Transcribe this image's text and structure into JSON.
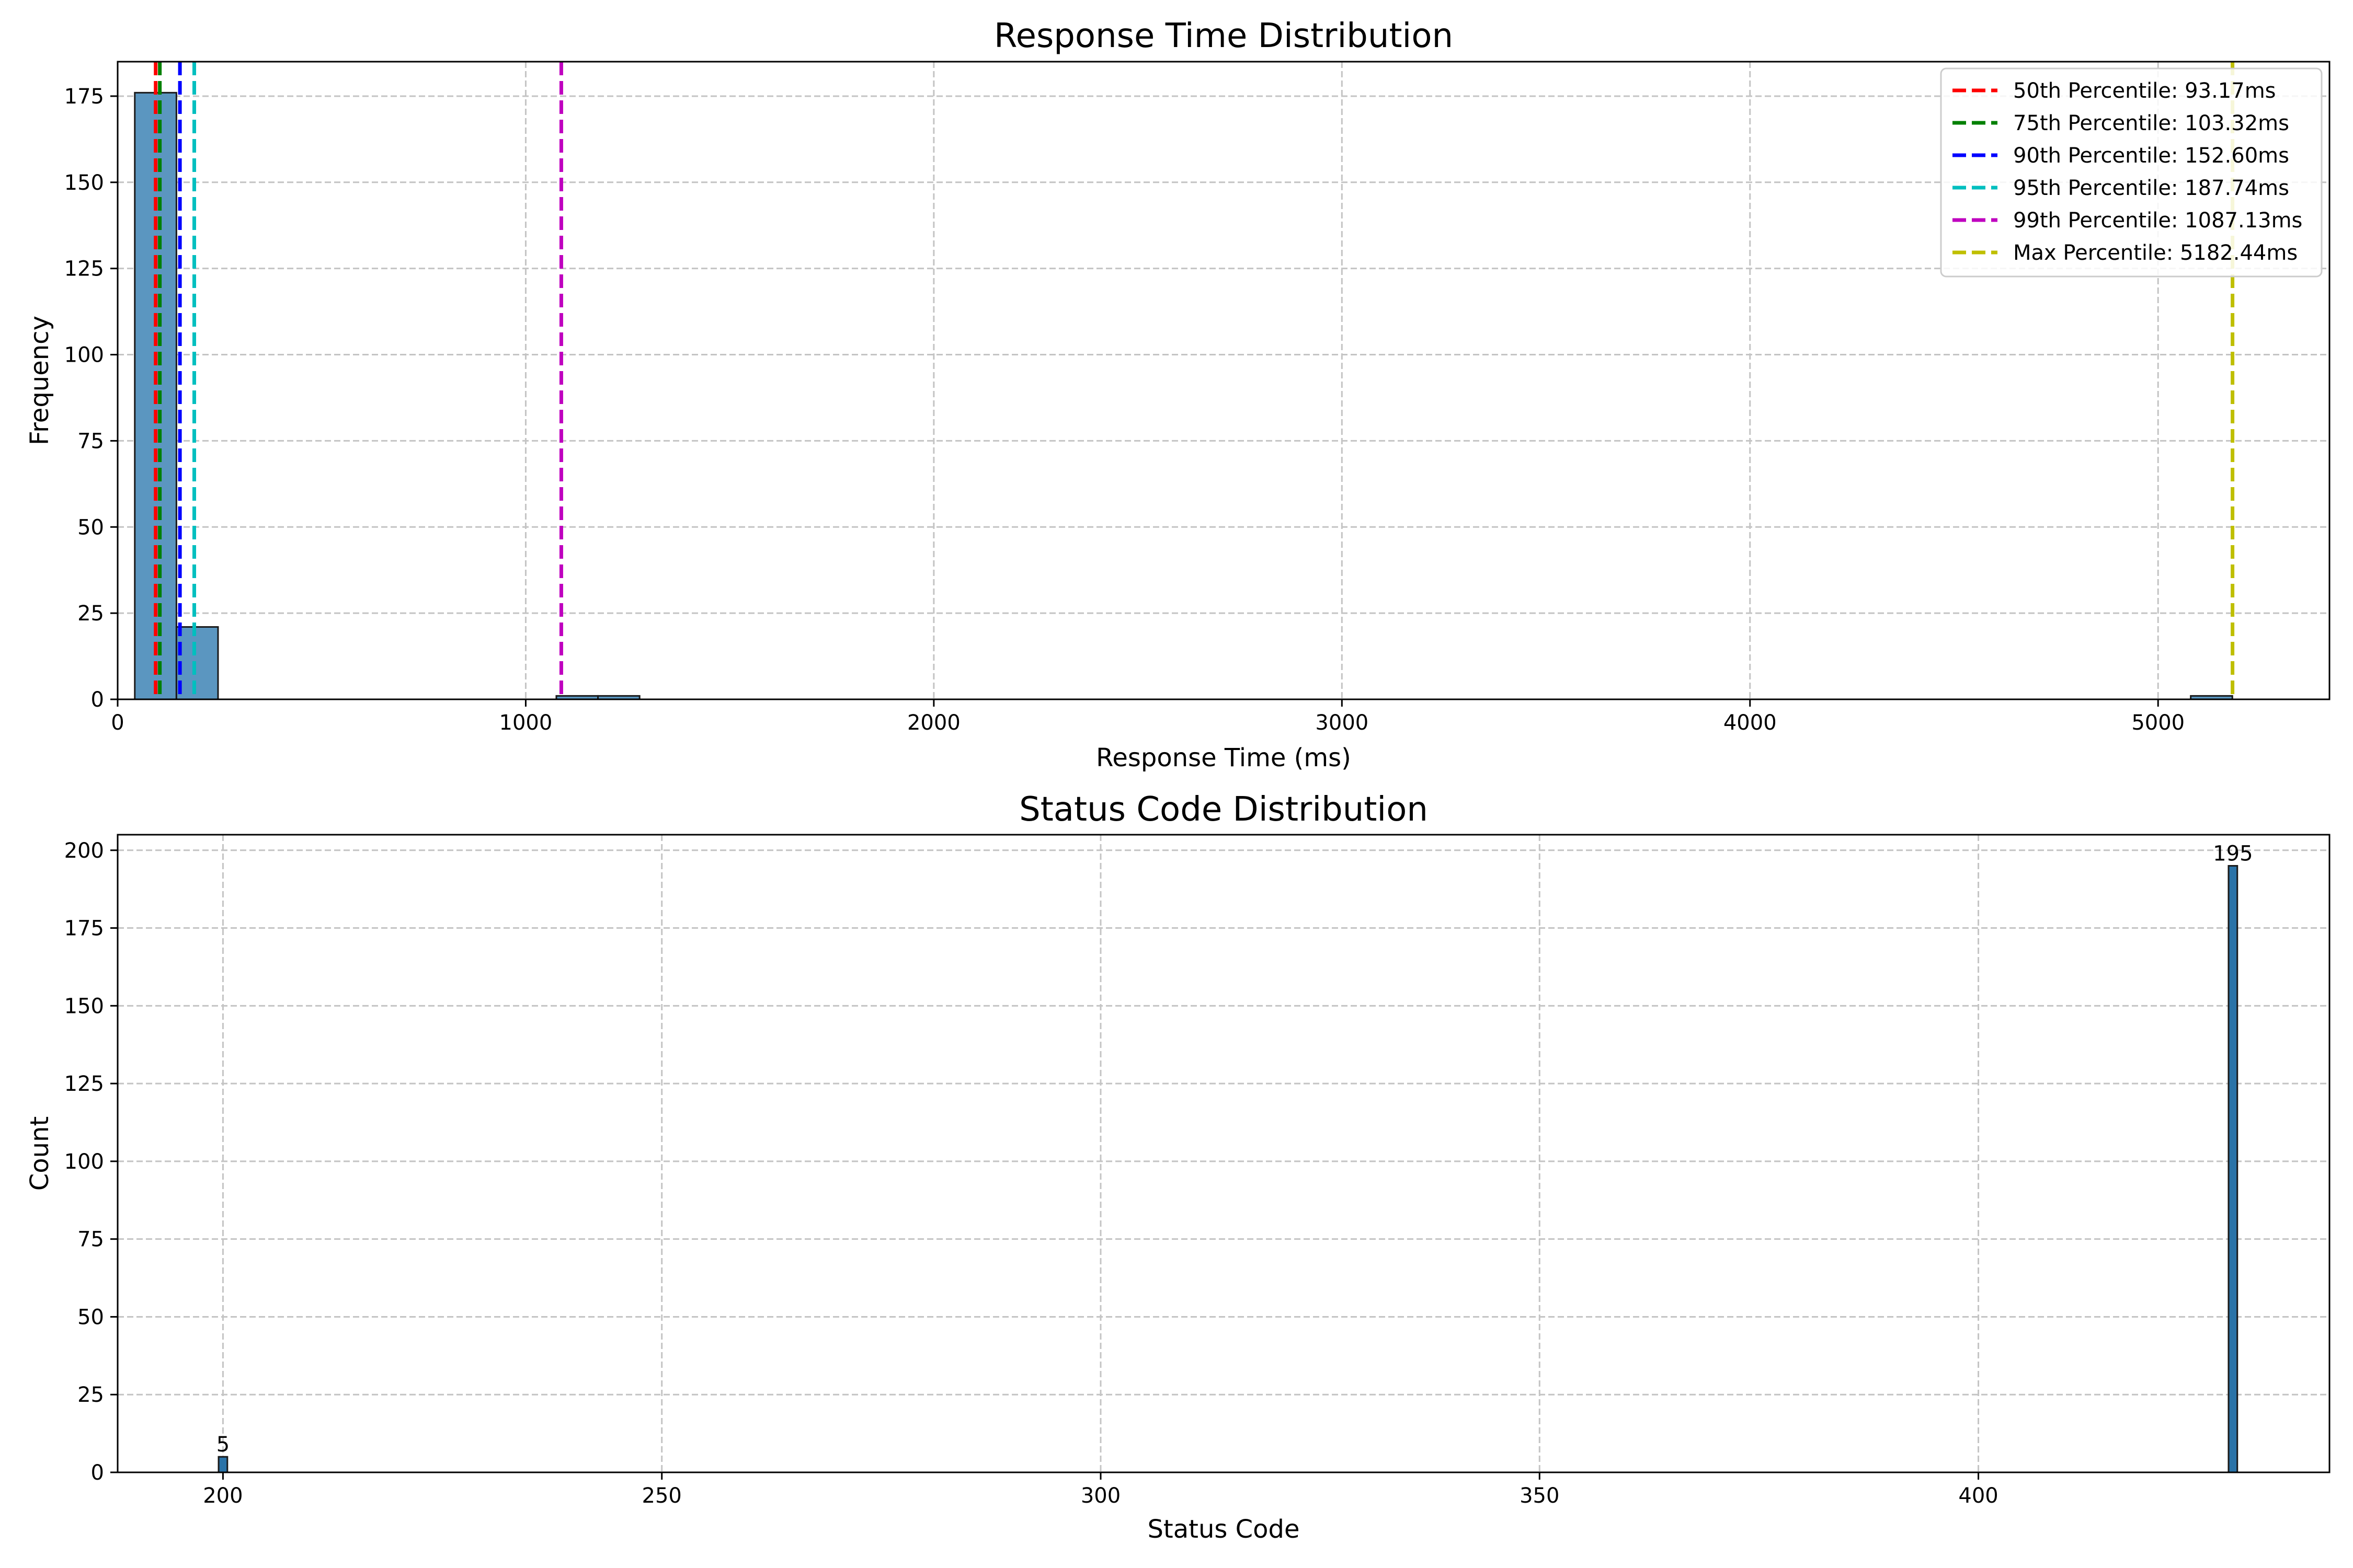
{
  "colors": {
    "bar_fill": "#5b96c0",
    "bar_fill_status": "#2a73a8",
    "bar_edge": "#1a1a1a",
    "grid": "#c4c4c4",
    "axis": "#000000"
  },
  "chart_data": [
    {
      "type": "bar",
      "title": "Response Time Distribution",
      "xlabel": "Response Time (ms)",
      "ylabel": "Frequency",
      "xlim": [
        0,
        5420
      ],
      "ylim": [
        0,
        185
      ],
      "xticks": [
        0,
        1000,
        2000,
        3000,
        4000,
        5000
      ],
      "yticks": [
        0,
        25,
        50,
        75,
        100,
        125,
        150,
        175
      ],
      "grid": true,
      "legend_position": "top-right",
      "bins": [
        {
          "x0": 42,
          "x1": 144,
          "count": 176
        },
        {
          "x0": 144,
          "x1": 246,
          "count": 21
        },
        {
          "x0": 1075,
          "x1": 1177,
          "count": 1
        },
        {
          "x0": 1177,
          "x1": 1279,
          "count": 1
        },
        {
          "x0": 5080,
          "x1": 5182,
          "count": 1
        }
      ],
      "percentiles": [
        {
          "label": "50th Percentile: 93.17ms",
          "value": 93.17,
          "color": "#ff0000"
        },
        {
          "label": "75th Percentile: 103.32ms",
          "value": 103.32,
          "color": "#008000"
        },
        {
          "label": "90th Percentile: 152.60ms",
          "value": 152.6,
          "color": "#0000ff"
        },
        {
          "label": "95th Percentile: 187.74ms",
          "value": 187.74,
          "color": "#00bfbf"
        },
        {
          "label": "99th Percentile: 1087.13ms",
          "value": 1087.13,
          "color": "#bf00bf"
        },
        {
          "label": "Max Percentile: 5182.44ms",
          "value": 5182.44,
          "color": "#bfbf00"
        }
      ]
    },
    {
      "type": "bar",
      "title": "Status Code Distribution",
      "xlabel": "Status Code",
      "ylabel": "Count",
      "xlim": [
        188,
        440
      ],
      "ylim": [
        0,
        205
      ],
      "xticks": [
        200,
        250,
        300,
        350,
        400
      ],
      "yticks": [
        0,
        25,
        50,
        75,
        100,
        125,
        150,
        175,
        200
      ],
      "grid": true,
      "bars": [
        {
          "code": 200,
          "count": 5,
          "label": "5"
        },
        {
          "code": 429,
          "count": 195,
          "label": "195"
        }
      ],
      "bar_width": 1
    }
  ]
}
